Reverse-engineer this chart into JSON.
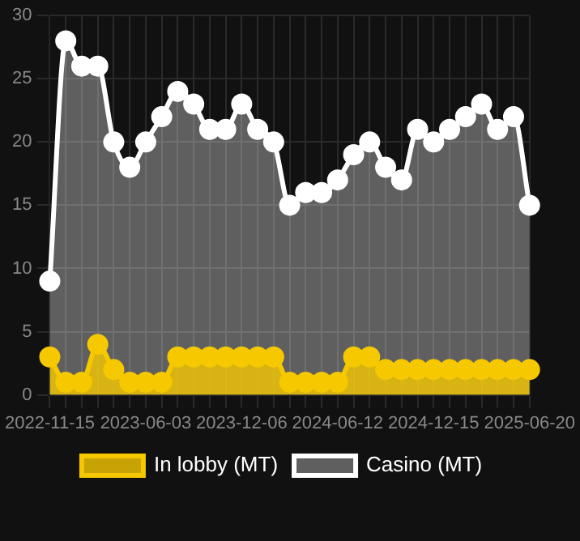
{
  "chart_data": {
    "type": "area",
    "categories": [
      "2022-11-15",
      null,
      null,
      null,
      null,
      null,
      "2023-06-03",
      null,
      null,
      null,
      null,
      null,
      "2023-12-06",
      null,
      null,
      null,
      null,
      null,
      "2024-06-12",
      null,
      null,
      null,
      null,
      null,
      "2024-12-15",
      null,
      null,
      null,
      null,
      null,
      "2025-06-20"
    ],
    "series": [
      {
        "name": "In lobby (MT)",
        "color": "#f5c800",
        "values": [
          3,
          1,
          1,
          4,
          2,
          1,
          1,
          1,
          3,
          3,
          3,
          3,
          3,
          3,
          3,
          1,
          1,
          1,
          1,
          3,
          3,
          2,
          2,
          2,
          2,
          2,
          2,
          2,
          2,
          2,
          2
        ]
      },
      {
        "name": "Casino (MT)",
        "color": "#ffffff",
        "values": [
          9,
          28,
          26,
          26,
          20,
          18,
          20,
          22,
          24,
          23,
          21,
          21,
          23,
          21,
          20,
          15,
          16,
          16,
          17,
          19,
          20,
          18,
          17,
          21,
          20,
          21,
          22,
          23,
          21,
          22,
          15
        ]
      }
    ],
    "ylim": [
      0,
      30
    ],
    "yticks": [
      0,
      5,
      10,
      15,
      20,
      25,
      30
    ],
    "grid": true,
    "legend": "bottom",
    "marker": "circle"
  }
}
